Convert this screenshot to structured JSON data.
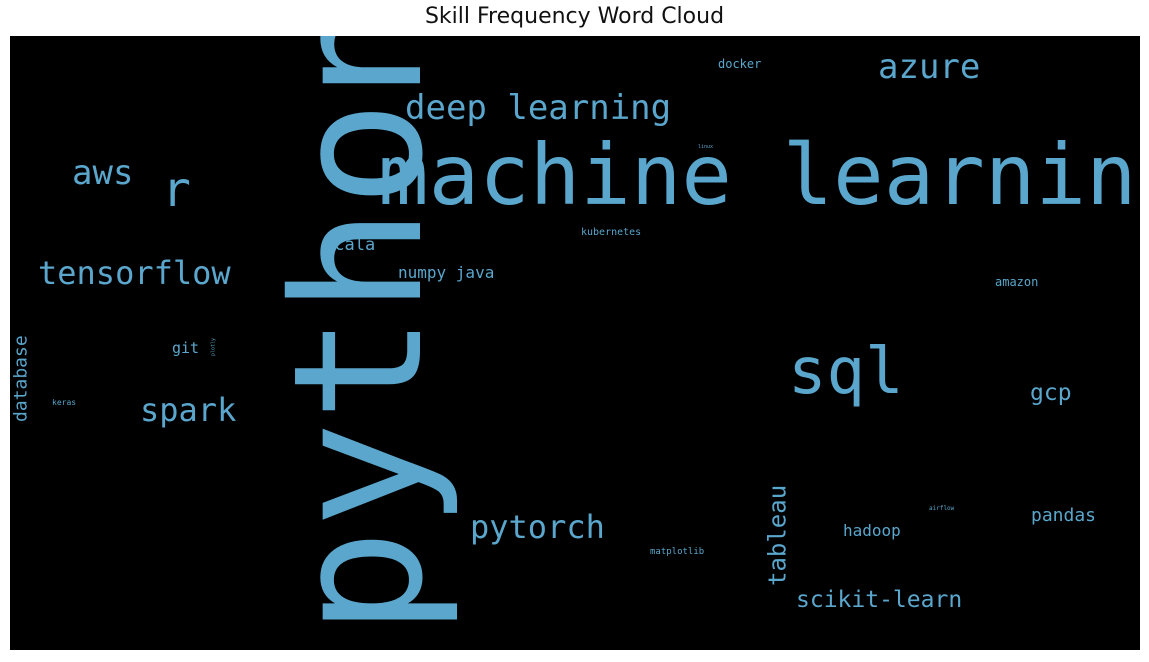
{
  "title": "Skill Frequency Word Cloud",
  "colors": {
    "background": "#000000",
    "word": "#5aa6cc"
  },
  "chart_data": {
    "type": "wordcloud",
    "title": "Skill Frequency Word Cloud",
    "words": [
      {
        "text": "python",
        "weight": 100,
        "orientation": "vertical"
      },
      {
        "text": "machine learning",
        "weight": 60,
        "orientation": "horizontal"
      },
      {
        "text": "sql",
        "weight": 38,
        "orientation": "horizontal"
      },
      {
        "text": "r",
        "weight": 30,
        "orientation": "horizontal"
      },
      {
        "text": "deep learning",
        "weight": 21,
        "orientation": "horizontal"
      },
      {
        "text": "aws",
        "weight": 21,
        "orientation": "horizontal"
      },
      {
        "text": "azure",
        "weight": 21,
        "orientation": "horizontal"
      },
      {
        "text": "tensorflow",
        "weight": 20,
        "orientation": "horizontal"
      },
      {
        "text": "spark",
        "weight": 20,
        "orientation": "horizontal"
      },
      {
        "text": "pytorch",
        "weight": 20,
        "orientation": "horizontal"
      },
      {
        "text": "tableau",
        "weight": 15,
        "orientation": "vertical"
      },
      {
        "text": "scikit-learn",
        "weight": 14,
        "orientation": "horizontal"
      },
      {
        "text": "gcp",
        "weight": 14,
        "orientation": "horizontal"
      },
      {
        "text": "pandas",
        "weight": 11,
        "orientation": "horizontal"
      },
      {
        "text": "database",
        "weight": 11,
        "orientation": "vertical"
      },
      {
        "text": "scala",
        "weight": 11,
        "orientation": "horizontal"
      },
      {
        "text": "numpy java",
        "weight": 10,
        "orientation": "horizontal"
      },
      {
        "text": "hadoop",
        "weight": 10,
        "orientation": "horizontal"
      },
      {
        "text": "git",
        "weight": 9,
        "orientation": "horizontal"
      },
      {
        "text": "docker",
        "weight": 8,
        "orientation": "horizontal"
      },
      {
        "text": "amazon",
        "weight": 8,
        "orientation": "horizontal"
      },
      {
        "text": "kubernetes",
        "weight": 7,
        "orientation": "horizontal"
      },
      {
        "text": "matplotlib",
        "weight": 6,
        "orientation": "horizontal"
      },
      {
        "text": "keras",
        "weight": 5,
        "orientation": "horizontal"
      },
      {
        "text": "airflow",
        "weight": 4,
        "orientation": "horizontal"
      },
      {
        "text": "linux",
        "weight": 3,
        "orientation": "horizontal"
      },
      {
        "text": "plotly",
        "weight": 3,
        "orientation": "vertical"
      }
    ]
  }
}
